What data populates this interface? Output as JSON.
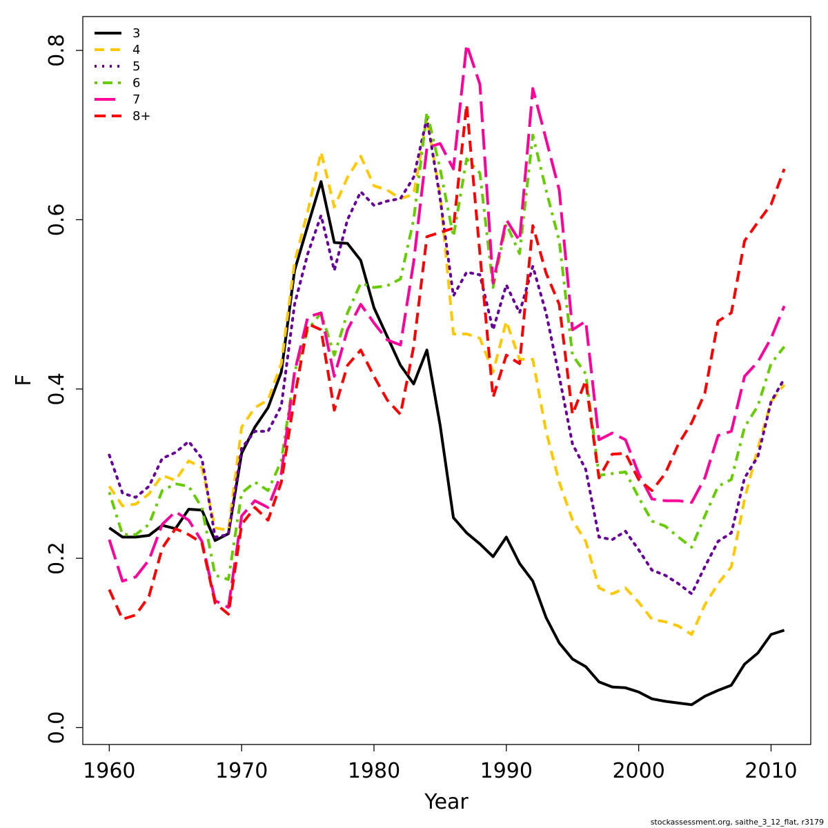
{
  "chart_data": {
    "type": "line",
    "xlabel": "Year",
    "ylabel": "F",
    "xlim": [
      1958,
      2013
    ],
    "ylim": [
      -0.02,
      0.84
    ],
    "x_ticks": [
      1960,
      1970,
      1980,
      1990,
      2000,
      2010
    ],
    "y_ticks": [
      0.0,
      0.2,
      0.4,
      0.6,
      0.8
    ],
    "x_tick_labels": [
      "1960",
      "1970",
      "1980",
      "1990",
      "2000",
      "2010"
    ],
    "y_tick_labels": [
      "0.0",
      "0.2",
      "0.4",
      "0.6",
      "0.8"
    ],
    "legend_position": "top-left",
    "x": [
      1960,
      1961,
      1962,
      1963,
      1964,
      1965,
      1966,
      1967,
      1968,
      1969,
      1970,
      1971,
      1972,
      1973,
      1974,
      1975,
      1976,
      1977,
      1978,
      1979,
      1980,
      1981,
      1982,
      1983,
      1984,
      1985,
      1986,
      1987,
      1988,
      1989,
      1990,
      1991,
      1992,
      1993,
      1994,
      1995,
      1996,
      1997,
      1998,
      1999,
      2000,
      2001,
      2002,
      2003,
      2004,
      2005,
      2006,
      2007,
      2008,
      2009,
      2010,
      2011
    ],
    "series": [
      {
        "name": "3",
        "color": "#000000",
        "dash": "solid",
        "values": [
          0.236,
          0.225,
          0.225,
          0.227,
          0.239,
          0.235,
          0.258,
          0.257,
          0.221,
          0.229,
          0.324,
          0.355,
          0.378,
          0.42,
          0.54,
          0.593,
          0.645,
          0.573,
          0.572,
          0.552,
          0.496,
          0.462,
          0.428,
          0.406,
          0.446,
          0.357,
          0.248,
          0.23,
          0.217,
          0.202,
          0.225,
          0.194,
          0.173,
          0.13,
          0.1,
          0.081,
          0.072,
          0.054,
          0.048,
          0.047,
          0.042,
          0.034,
          0.031,
          0.029,
          0.027,
          0.037,
          0.044,
          0.05,
          0.075,
          0.088,
          0.11,
          0.115
        ]
      },
      {
        "name": "4",
        "color": "#FFC800",
        "dash": "short",
        "values": [
          0.285,
          0.262,
          0.264,
          0.276,
          0.298,
          0.292,
          0.315,
          0.307,
          0.236,
          0.233,
          0.355,
          0.378,
          0.387,
          0.43,
          0.55,
          0.61,
          0.68,
          0.615,
          0.65,
          0.675,
          0.64,
          0.635,
          0.625,
          0.63,
          0.72,
          0.63,
          0.465,
          0.465,
          0.46,
          0.42,
          0.48,
          0.435,
          0.435,
          0.35,
          0.29,
          0.245,
          0.22,
          0.165,
          0.158,
          0.165,
          0.148,
          0.128,
          0.125,
          0.12,
          0.11,
          0.145,
          0.17,
          0.19,
          0.27,
          0.33,
          0.385,
          0.405
        ]
      },
      {
        "name": "5",
        "color": "#660099",
        "dash": "dotted",
        "values": [
          0.322,
          0.277,
          0.272,
          0.285,
          0.318,
          0.325,
          0.338,
          0.318,
          0.225,
          0.228,
          0.33,
          0.35,
          0.35,
          0.38,
          0.5,
          0.56,
          0.605,
          0.54,
          0.6,
          0.633,
          0.617,
          0.622,
          0.625,
          0.65,
          0.72,
          0.625,
          0.51,
          0.538,
          0.535,
          0.47,
          0.523,
          0.49,
          0.545,
          0.49,
          0.415,
          0.335,
          0.305,
          0.225,
          0.222,
          0.232,
          0.21,
          0.186,
          0.18,
          0.17,
          0.158,
          0.19,
          0.22,
          0.23,
          0.295,
          0.32,
          0.385,
          0.412
        ]
      },
      {
        "name": "6",
        "color": "#66CC00",
        "dash": "dotdash",
        "values": [
          0.278,
          0.228,
          0.228,
          0.24,
          0.28,
          0.288,
          0.285,
          0.26,
          0.18,
          0.175,
          0.277,
          0.29,
          0.28,
          0.315,
          0.42,
          0.47,
          0.49,
          0.44,
          0.49,
          0.525,
          0.52,
          0.522,
          0.53,
          0.6,
          0.727,
          0.66,
          0.58,
          0.672,
          0.655,
          0.52,
          0.595,
          0.56,
          0.7,
          0.635,
          0.575,
          0.44,
          0.418,
          0.298,
          0.3,
          0.302,
          0.272,
          0.244,
          0.238,
          0.225,
          0.213,
          0.25,
          0.285,
          0.293,
          0.355,
          0.38,
          0.43,
          0.45
        ]
      },
      {
        "name": "7",
        "color": "#FF0099",
        "dash": "long",
        "values": [
          0.222,
          0.173,
          0.178,
          0.198,
          0.24,
          0.255,
          0.245,
          0.22,
          0.15,
          0.142,
          0.25,
          0.268,
          0.26,
          0.3,
          0.42,
          0.485,
          0.49,
          0.415,
          0.47,
          0.5,
          0.478,
          0.458,
          0.452,
          0.55,
          0.685,
          0.69,
          0.66,
          0.807,
          0.76,
          0.525,
          0.6,
          0.575,
          0.755,
          0.695,
          0.635,
          0.47,
          0.48,
          0.34,
          0.348,
          0.34,
          0.3,
          0.27,
          0.268,
          0.268,
          0.266,
          0.295,
          0.345,
          0.35,
          0.415,
          0.432,
          0.46,
          0.498
        ]
      },
      {
        "name": "8+",
        "color": "#FF0000",
        "dash": "dashed",
        "values": [
          0.163,
          0.128,
          0.133,
          0.155,
          0.212,
          0.235,
          0.228,
          0.218,
          0.147,
          0.134,
          0.24,
          0.26,
          0.245,
          0.29,
          0.39,
          0.477,
          0.47,
          0.375,
          0.428,
          0.446,
          0.415,
          0.387,
          0.37,
          0.45,
          0.58,
          0.585,
          0.59,
          0.736,
          0.56,
          0.39,
          0.44,
          0.43,
          0.593,
          0.537,
          0.5,
          0.37,
          0.41,
          0.295,
          0.323,
          0.324,
          0.293,
          0.28,
          0.3,
          0.335,
          0.36,
          0.395,
          0.48,
          0.49,
          0.575,
          0.597,
          0.618,
          0.66
        ]
      }
    ]
  },
  "footnote": "stockassessment.org, saithe_3_12_flat, r3179"
}
